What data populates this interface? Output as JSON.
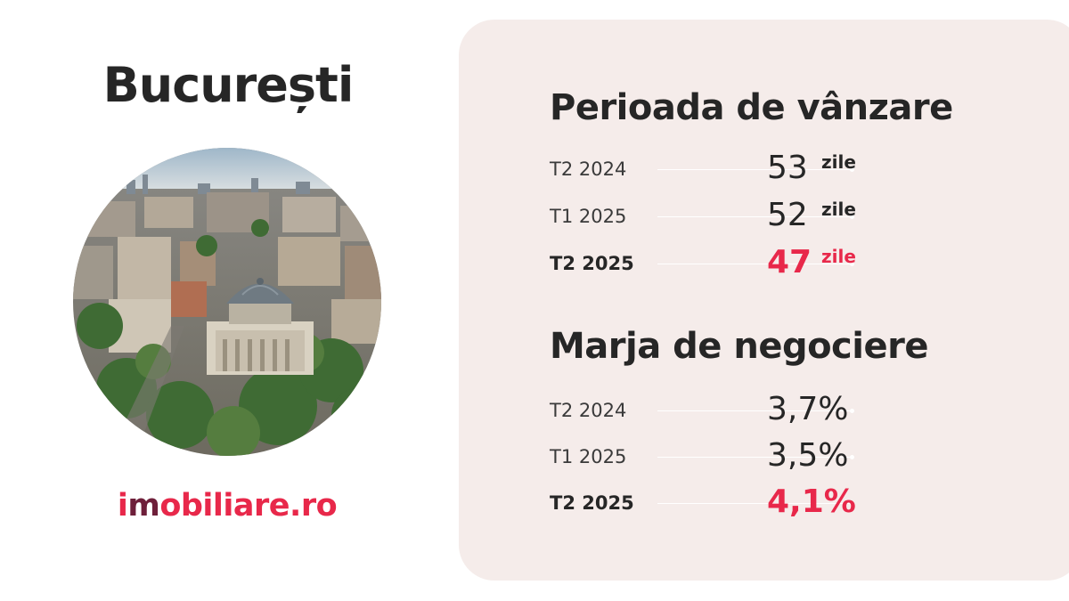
{
  "city": "București",
  "brand": {
    "prefix": "i",
    "middle": "m",
    "suffix": "obiliare.ro"
  },
  "colors": {
    "accent": "#e8284a",
    "panel": "#f5ecea",
    "text": "#262626"
  },
  "photo": {
    "icon": "city-aerial-photo"
  },
  "sale_period": {
    "title": "Perioada de vânzare",
    "rows": [
      {
        "period": "T2 2024",
        "value": "53",
        "unit": "zile"
      },
      {
        "period": "T1 2025",
        "value": "52",
        "unit": "zile"
      },
      {
        "period": "T2 2025",
        "value": "47",
        "unit": "zile"
      }
    ]
  },
  "negotiation_margin": {
    "title": "Marja de negociere",
    "rows": [
      {
        "period": "T2 2024",
        "value": "3,7%"
      },
      {
        "period": "T1 2025",
        "value": "3,5%"
      },
      {
        "period": "T2 2025",
        "value": "4,1%"
      }
    ]
  }
}
